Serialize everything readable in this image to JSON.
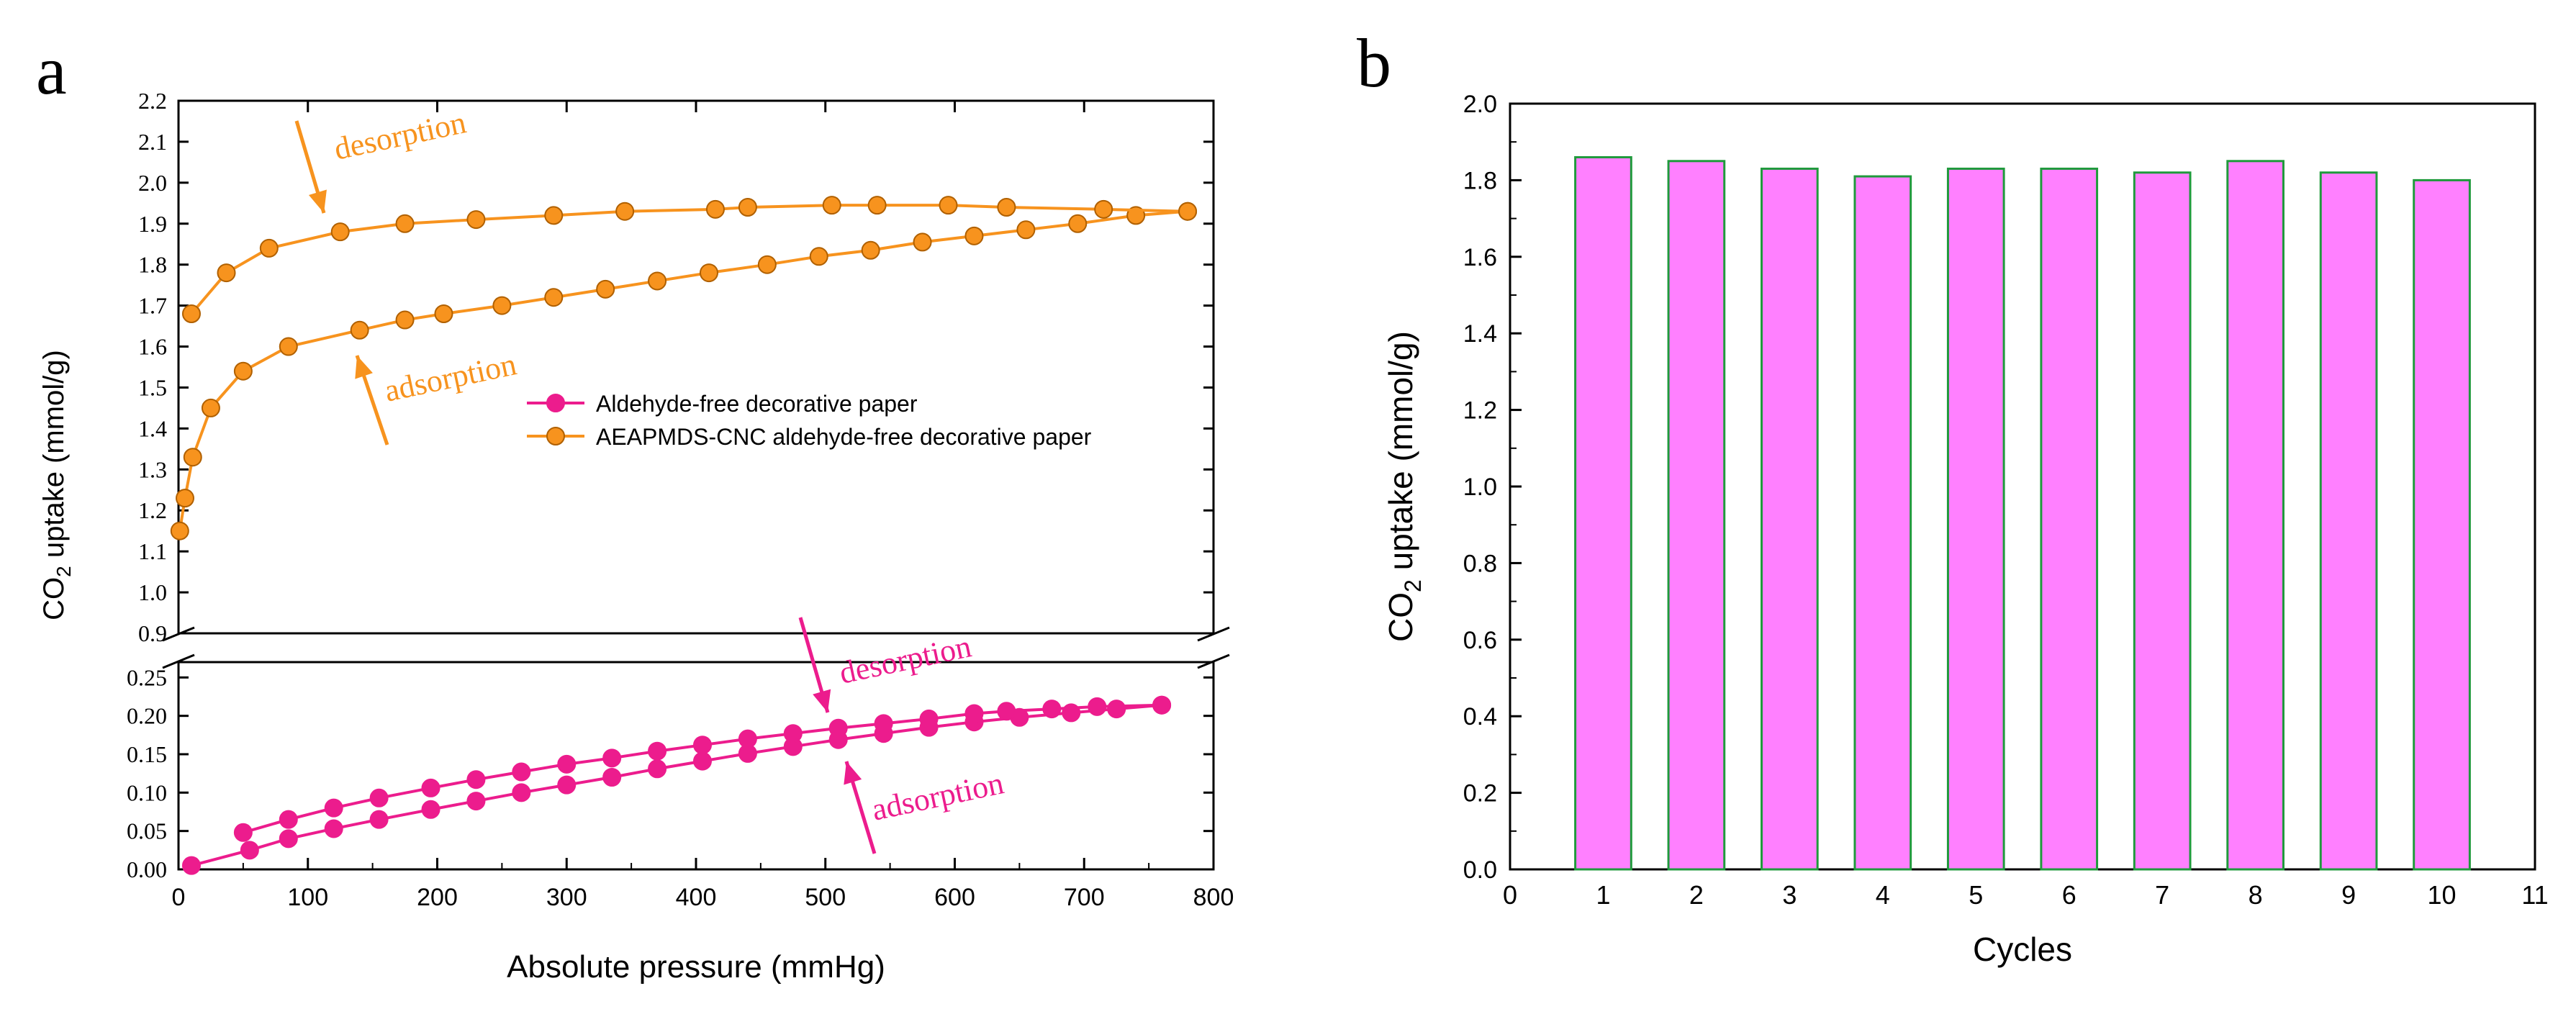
{
  "chart_data": [
    {
      "panel": "a",
      "type": "line",
      "xlabel": "Absolute pressure (mmHg)",
      "ylabel": "CO2 uptake (mmol/g)",
      "ylabel_main": "CO",
      "ylabel_sub": "2",
      "ylabel_rest": " uptake (mmol/g)",
      "xlim": [
        0,
        800
      ],
      "x_ticks": [
        "0",
        "100",
        "200",
        "300",
        "400",
        "500",
        "600",
        "700",
        "800"
      ],
      "axis_break": true,
      "upper_ylim": [
        0.9,
        2.2
      ],
      "upper_y_ticks": [
        "0.9",
        "1.0",
        "1.1",
        "1.2",
        "1.3",
        "1.4",
        "1.5",
        "1.6",
        "1.7",
        "1.8",
        "1.9",
        "2.0",
        "2.1",
        "2.2"
      ],
      "lower_ylim": [
        0,
        0.27
      ],
      "lower_y_ticks": [
        "0.00",
        "0.05",
        "0.10",
        "0.15",
        "0.20",
        "0.25"
      ],
      "legend": {
        "placement": "center-right",
        "entries": [
          "Aldehyde-free decorative paper",
          "AEAPMDS-CNC aldehyde-free decorative paper"
        ]
      },
      "annotations": {
        "orange_desorption": "desorption",
        "orange_adsorption": "adsorption",
        "pink_desorption": "desorption",
        "pink_adsorption": "adsorption"
      },
      "colors": {
        "orange": "#f7931e",
        "pink": "#ec1c8d"
      },
      "series": [
        {
          "name": "Aldehyde-free decorative paper",
          "color": "#ec1c8d",
          "segment": "lower",
          "adsorption": {
            "x": [
              10,
              55,
              85,
              120,
              155,
              195,
              230,
              265,
              300,
              335,
              370,
              405,
              440,
              475,
              510,
              545,
              580,
              615,
              650,
              690,
              725,
              760
            ],
            "y": [
              0.005,
              0.025,
              0.04,
              0.053,
              0.065,
              0.078,
              0.089,
              0.1,
              0.11,
              0.12,
              0.131,
              0.141,
              0.151,
              0.16,
              0.169,
              0.177,
              0.185,
              0.192,
              0.198,
              0.204,
              0.209,
              0.214
            ]
          },
          "desorption": {
            "x": [
              760,
              710,
              675,
              640,
              615,
              580,
              545,
              510,
              475,
              440,
              405,
              370,
              335,
              300,
              265,
              230,
              195,
              155,
              120,
              85,
              50
            ],
            "y": [
              0.214,
              0.212,
              0.209,
              0.206,
              0.203,
              0.196,
              0.19,
              0.184,
              0.177,
              0.17,
              0.162,
              0.154,
              0.145,
              0.137,
              0.127,
              0.117,
              0.106,
              0.093,
              0.08,
              0.065,
              0.048
            ]
          }
        },
        {
          "name": "AEAPMDS-CNC aldehyde-free decorative paper",
          "color": "#f7931e",
          "segment": "upper",
          "adsorption": {
            "x": [
              1,
              5,
              11,
              25,
              50,
              85,
              140,
              175,
              205,
              250,
              290,
              330,
              370,
              410,
              455,
              495,
              535,
              575,
              615,
              655,
              695,
              740,
              780
            ],
            "y": [
              1.15,
              1.23,
              1.33,
              1.45,
              1.54,
              1.6,
              1.64,
              1.665,
              1.68,
              1.7,
              1.72,
              1.74,
              1.76,
              1.78,
              1.8,
              1.82,
              1.835,
              1.855,
              1.87,
              1.885,
              1.9,
              1.92,
              1.93
            ]
          },
          "desorption": {
            "x": [
              780,
              715,
              640,
              595,
              540,
              505,
              440,
              415,
              345,
              290,
              230,
              175,
              125,
              70,
              37,
              10
            ],
            "y": [
              1.93,
              1.935,
              1.94,
              1.945,
              1.945,
              1.945,
              1.94,
              1.935,
              1.93,
              1.92,
              1.91,
              1.9,
              1.88,
              1.84,
              1.78,
              1.68
            ]
          }
        }
      ]
    },
    {
      "panel": "b",
      "type": "bar",
      "xlabel": "Cycles",
      "ylabel": "CO2 uptake (mmol/g)",
      "ylabel_main": "CO",
      "ylabel_sub": "2",
      "ylabel_rest": " uptake (mmol/g)",
      "xlim": [
        0,
        11
      ],
      "x_ticks": [
        "0",
        "1",
        "2",
        "3",
        "4",
        "5",
        "6",
        "7",
        "8",
        "9",
        "10",
        "11"
      ],
      "ylim": [
        0,
        2.0
      ],
      "y_ticks": [
        "0.0",
        "0.2",
        "0.4",
        "0.6",
        "0.8",
        "1.0",
        "1.2",
        "1.4",
        "1.6",
        "1.8",
        "2.0"
      ],
      "categories": [
        1,
        2,
        3,
        4,
        5,
        6,
        7,
        8,
        9,
        10
      ],
      "values": [
        1.86,
        1.85,
        1.83,
        1.81,
        1.83,
        1.83,
        1.82,
        1.85,
        1.82,
        1.8
      ],
      "bar_fill": "#ff80ff",
      "bar_edge": "#1f9a3c"
    }
  ]
}
